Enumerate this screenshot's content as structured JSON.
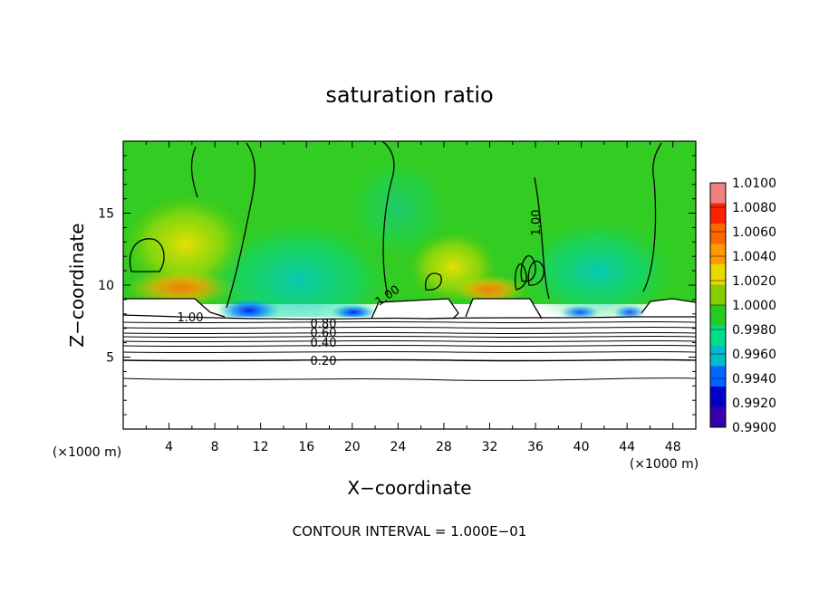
{
  "chart_data": {
    "type": "heatmap",
    "title": "saturation ratio",
    "xlabel": "X−coordinate",
    "ylabel": "Z−coordinate",
    "x_unit_label_left": "(×1000 m)",
    "x_unit_label_right": "(×1000 m)",
    "xlim": [
      0,
      50
    ],
    "ylim": [
      0,
      20
    ],
    "x_ticks": [
      "4",
      "8",
      "12",
      "16",
      "20",
      "24",
      "28",
      "32",
      "36",
      "40",
      "44",
      "48"
    ],
    "y_ticks": [
      "5",
      "10",
      "15"
    ],
    "x_tick_values": [
      4,
      8,
      12,
      16,
      20,
      24,
      28,
      32,
      36,
      40,
      44,
      48
    ],
    "y_tick_values": [
      5,
      10,
      15
    ],
    "colorbar": {
      "min": 0.99,
      "max": 1.01,
      "labels": [
        "1.0100",
        "1.0080",
        "1.0060",
        "1.0040",
        "1.0020",
        "1.0000",
        "0.9980",
        "0.9960",
        "0.9940",
        "0.9920",
        "0.9900"
      ],
      "values": [
        1.01,
        1.008,
        1.006,
        1.004,
        1.002,
        1.0,
        0.998,
        0.996,
        0.994,
        0.992,
        0.99
      ],
      "colors": [
        "#f08080",
        "#ff2200",
        "#ff6600",
        "#ff9900",
        "#e8d800",
        "#88cc00",
        "#22cc22",
        "#00dd88",
        "#00bbcc",
        "#0066ff",
        "#0000cc",
        "#3300aa"
      ]
    },
    "contour_labels": [
      {
        "text": "1.00",
        "x": 11.0,
        "y": 7.8
      },
      {
        "text": "0.80",
        "x": 17.5,
        "y": 7.2
      },
      {
        "text": "0.60",
        "x": 17.5,
        "y": 6.6
      },
      {
        "text": "0.40",
        "x": 17.5,
        "y": 5.9
      },
      {
        "text": "0.20",
        "x": 17.5,
        "y": 4.8
      },
      {
        "text": "1.00",
        "x": 23.0,
        "y": 9.0
      },
      {
        "text": "1.00",
        "x": 35.0,
        "y": 14.4
      }
    ],
    "subsaturated_contour_levels": [
      0.95,
      0.9,
      0.8,
      0.7,
      0.6,
      0.5,
      0.4,
      0.3,
      0.2,
      0.1
    ],
    "footer": "CONTOUR INTERVAL = 1.000E−01"
  }
}
